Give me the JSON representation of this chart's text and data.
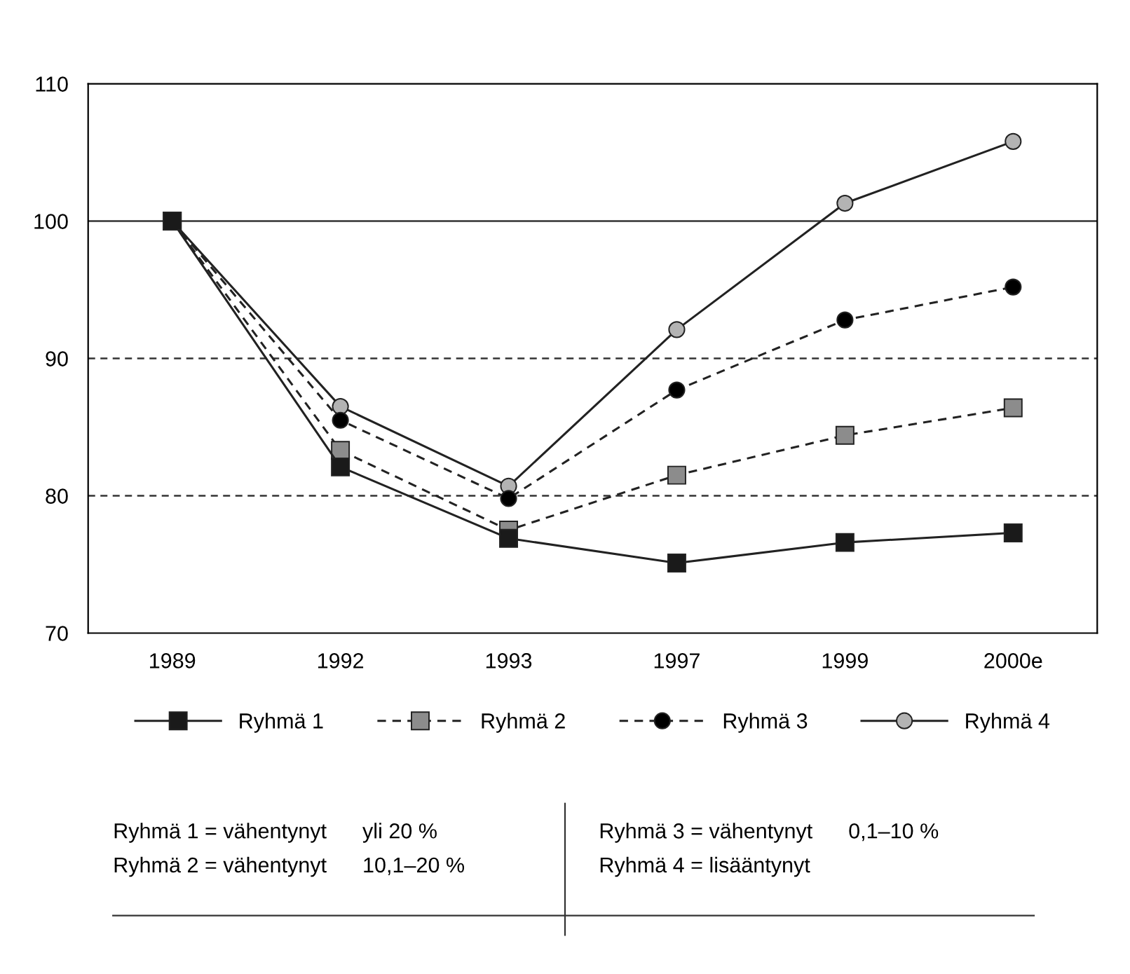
{
  "chart_data": {
    "type": "line",
    "categories": [
      "1989",
      "1992",
      "1993",
      "1997",
      "1999",
      "2000e"
    ],
    "series": [
      {
        "name": "Ryhmä 1",
        "color": "#1a1a1a",
        "marker": "square",
        "line_style": "solid",
        "values": [
          100,
          82.1,
          76.9,
          75.1,
          76.6,
          77.3
        ]
      },
      {
        "name": "Ryhmä 2",
        "color": "#8c8c8c",
        "marker": "square",
        "line_style": "dashed",
        "values": [
          100,
          83.3,
          77.5,
          81.5,
          84.4,
          86.4
        ]
      },
      {
        "name": "Ryhmä 3",
        "color": "#000000",
        "marker": "circle",
        "line_style": "dashed",
        "values": [
          100,
          85.5,
          79.8,
          87.7,
          92.8,
          95.2
        ]
      },
      {
        "name": "Ryhmä 4",
        "color": "#b3b3b3",
        "marker": "circle",
        "line_style": "solid",
        "values": [
          100,
          86.5,
          80.7,
          92.1,
          101.3,
          105.8
        ]
      }
    ],
    "ylim": [
      70,
      110
    ],
    "yticks": [
      70,
      80,
      90,
      100,
      110
    ],
    "ref_lines": [
      {
        "axis": "y",
        "value": 80,
        "line_style": "dashed",
        "color": "#333333"
      },
      {
        "axis": "y",
        "value": 90,
        "line_style": "dashed",
        "color": "#333333"
      },
      {
        "axis": "y",
        "value": 100,
        "line_style": "solid",
        "color": "#333333"
      }
    ],
    "grid": false,
    "legend": "bottom",
    "annotations": [
      "Ryhmä 1 = vähentynyt      yli 20 %",
      "Ryhmä 2 = vähentynyt      10,1–20 %",
      "Ryhmä 3 = vähentynyt      0,1–10 %",
      "Ryhmä 4 = lisääntynyt"
    ]
  }
}
